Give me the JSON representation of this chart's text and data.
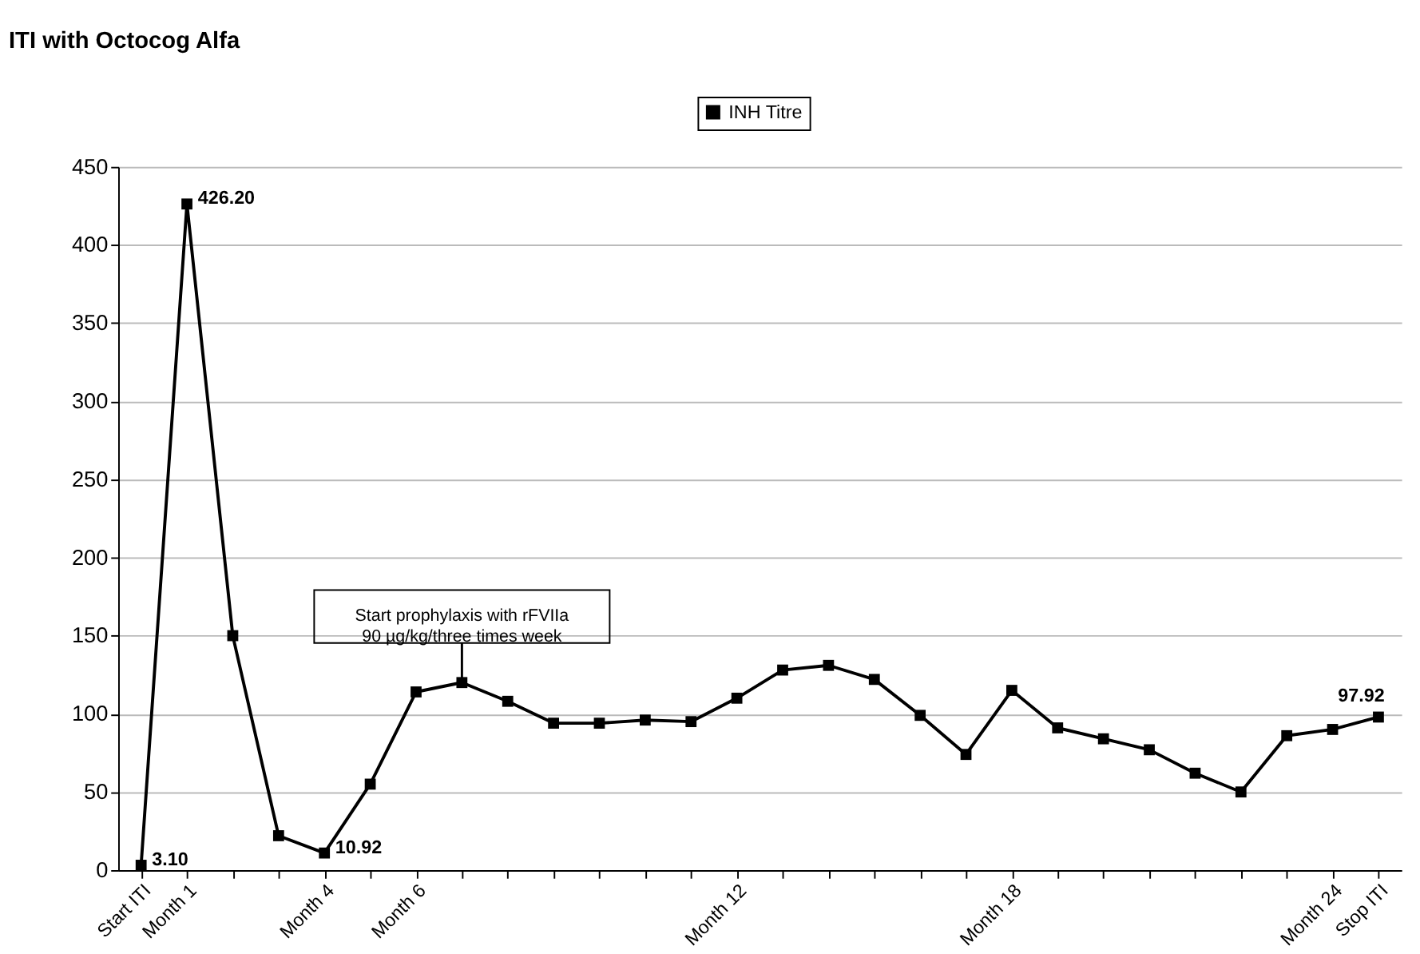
{
  "chart_data": {
    "type": "line",
    "title": "ITI with Octocog Alfa",
    "categories": [
      "Start ITI",
      "Month 1",
      null,
      null,
      "Month 4",
      null,
      "Month 6",
      null,
      null,
      null,
      null,
      null,
      null,
      "Month 12",
      null,
      null,
      null,
      null,
      null,
      "Month 18",
      null,
      null,
      null,
      null,
      null,
      null,
      "Month 24",
      "Stop ITI"
    ],
    "series": [
      {
        "name": "INH Titre",
        "color": "#000000",
        "values": [
          3.1,
          426.2,
          150,
          22,
          10.92,
          55,
          114,
          120,
          108,
          94,
          94,
          96,
          95,
          110,
          128,
          131,
          122,
          99,
          74,
          115,
          91,
          84,
          77,
          62,
          50,
          86,
          90,
          97.92
        ],
        "value_labels": [
          "3.10",
          "426.20",
          null,
          null,
          "10.92",
          null,
          null,
          null,
          null,
          null,
          null,
          null,
          null,
          null,
          null,
          null,
          null,
          null,
          null,
          null,
          null,
          null,
          null,
          null,
          null,
          null,
          null,
          "97.92"
        ]
      }
    ],
    "ylim": [
      0,
      450
    ],
    "yticks": [
      0,
      50,
      100,
      150,
      200,
      250,
      300,
      350,
      400,
      450
    ],
    "grid": "y",
    "legend": "top",
    "marker": "square",
    "line_style": "solid",
    "annotations": [
      {
        "text": "Start prophylaxis with rFVIIa\n90 µg/kg/three times week",
        "y": 120
      }
    ]
  }
}
